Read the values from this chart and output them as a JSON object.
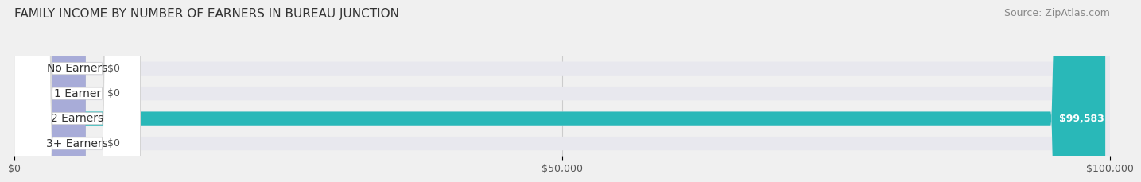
{
  "title": "FAMILY INCOME BY NUMBER OF EARNERS IN BUREAU JUNCTION",
  "source": "Source: ZipAtlas.com",
  "categories": [
    "No Earners",
    "1 Earner",
    "2 Earners",
    "3+ Earners"
  ],
  "values": [
    0,
    0,
    99583,
    0
  ],
  "bar_colors": [
    "#7ec8d8",
    "#c4a8c8",
    "#29b8b8",
    "#a8acd8"
  ],
  "value_labels": [
    "$0",
    "$0",
    "$99,583",
    "$0"
  ],
  "xlim": [
    0,
    100000
  ],
  "xtick_values": [
    0,
    50000,
    100000
  ],
  "xtick_labels": [
    "$0",
    "$50,000",
    "$100,000"
  ],
  "background_color": "#f0f0f0",
  "bar_background_color": "#e8e8ee",
  "title_fontsize": 11,
  "source_fontsize": 9,
  "label_fontsize": 10,
  "value_fontsize": 9,
  "bar_height": 0.55
}
